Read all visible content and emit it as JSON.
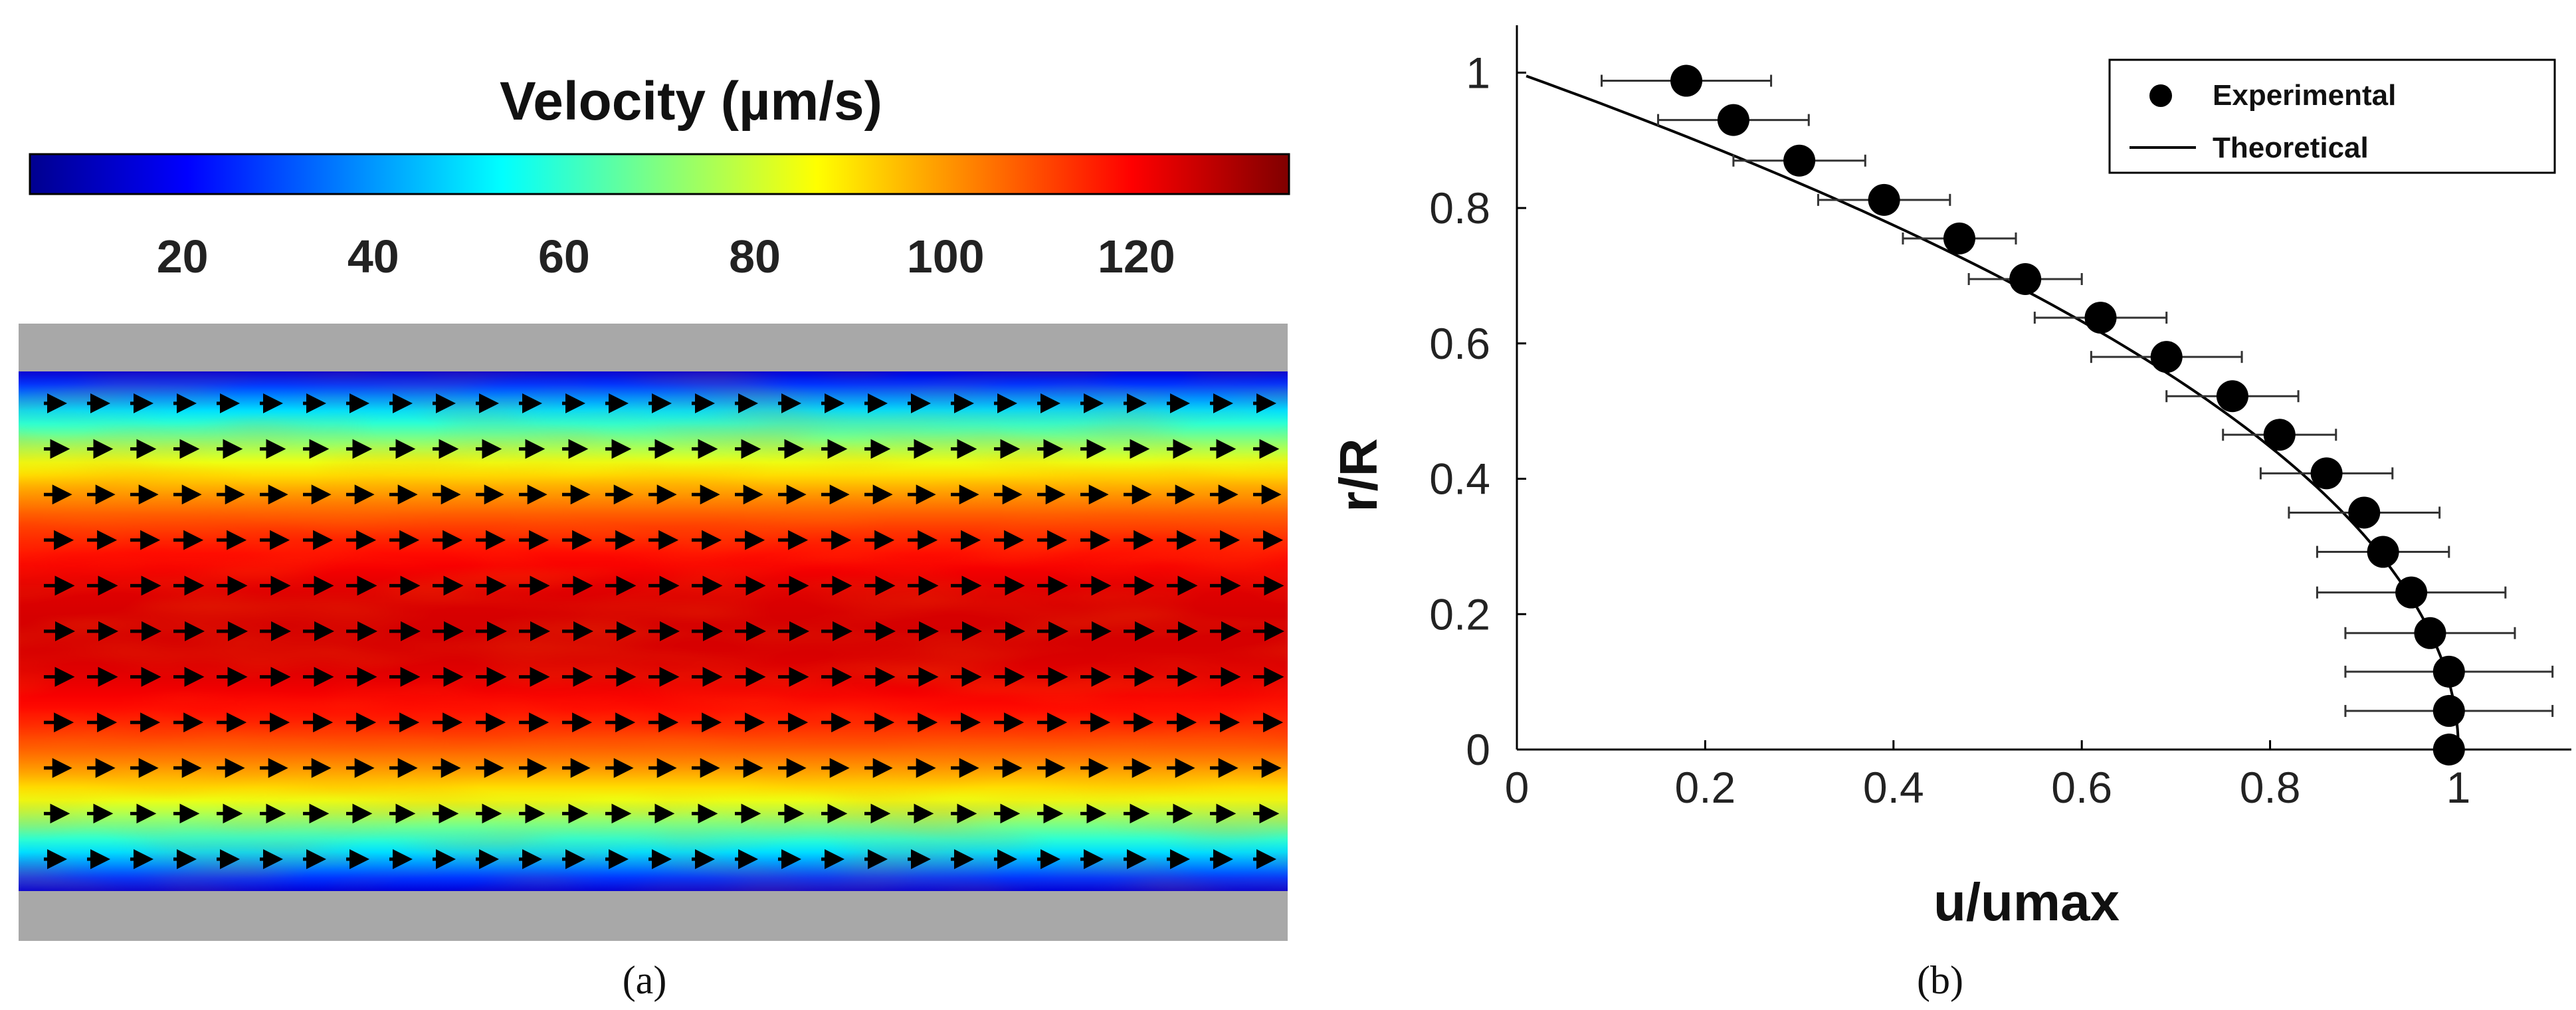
{
  "panel_labels": {
    "a": "(a)",
    "b": "(b)"
  },
  "chart_data": [
    {
      "type": "heatmap",
      "title": "Velocity (µm/s)",
      "colorbar": {
        "label": "Velocity (µm/s)",
        "range": [
          4,
          136
        ],
        "ticks": [
          20,
          40,
          60,
          80,
          100,
          120
        ],
        "colormap": [
          "#00008f",
          "#0000ff",
          "#0080ff",
          "#00ffff",
          "#80ff80",
          "#ffff00",
          "#ff8000",
          "#ff0000",
          "#800000"
        ]
      },
      "field": {
        "description": "velocity field in channel with flow arrows pointing right",
        "rows": 11,
        "columns": 29,
        "center_velocity": 125,
        "wall_velocity": 15
      },
      "wall_color": "#a8a8a8"
    },
    {
      "type": "scatter",
      "xlabel": "u/umax",
      "ylabel": "r/R",
      "xlim": [
        0,
        1.12
      ],
      "ylim": [
        0,
        1.07
      ],
      "xticks": [
        0,
        0.2,
        0.4,
        0.6,
        0.8,
        1
      ],
      "yticks": [
        0,
        0.2,
        0.4,
        0.6,
        0.8,
        1
      ],
      "xtick_labels": [
        "0",
        "0.2",
        "0.4",
        "0.6",
        "0.8",
        "1"
      ],
      "ytick_labels": [
        "0",
        "0.2",
        "0.4",
        "0.6",
        "0.8",
        "1"
      ],
      "legend": {
        "position": "top-right",
        "entries": [
          "Experimental",
          "Theoretical"
        ]
      },
      "series": [
        {
          "name": "Experimental",
          "style": "markers-with-x-errorbars",
          "points": [
            {
              "x": 0.18,
              "y": 0.988,
              "xerr": 0.09
            },
            {
              "x": 0.23,
              "y": 0.93,
              "xerr": 0.08
            },
            {
              "x": 0.3,
              "y": 0.87,
              "xerr": 0.07
            },
            {
              "x": 0.39,
              "y": 0.812,
              "xerr": 0.07
            },
            {
              "x": 0.47,
              "y": 0.755,
              "xerr": 0.06
            },
            {
              "x": 0.54,
              "y": 0.695,
              "xerr": 0.06
            },
            {
              "x": 0.62,
              "y": 0.638,
              "xerr": 0.07
            },
            {
              "x": 0.69,
              "y": 0.58,
              "xerr": 0.08
            },
            {
              "x": 0.76,
              "y": 0.522,
              "xerr": 0.07
            },
            {
              "x": 0.81,
              "y": 0.465,
              "xerr": 0.06
            },
            {
              "x": 0.86,
              "y": 0.408,
              "xerr": 0.07
            },
            {
              "x": 0.9,
              "y": 0.35,
              "xerr": 0.08
            },
            {
              "x": 0.92,
              "y": 0.292,
              "xerr": 0.07
            },
            {
              "x": 0.95,
              "y": 0.232,
              "xerr": 0.1
            },
            {
              "x": 0.97,
              "y": 0.172,
              "xerr": 0.09
            },
            {
              "x": 0.99,
              "y": 0.115,
              "xerr": 0.11
            },
            {
              "x": 0.99,
              "y": 0.057,
              "xerr": 0.11
            },
            {
              "x": 0.99,
              "y": 0.0,
              "xerr": 0.0
            }
          ]
        },
        {
          "name": "Theoretical",
          "style": "line",
          "formula": "u/umax = 1 - (r/R)^2"
        }
      ]
    }
  ]
}
